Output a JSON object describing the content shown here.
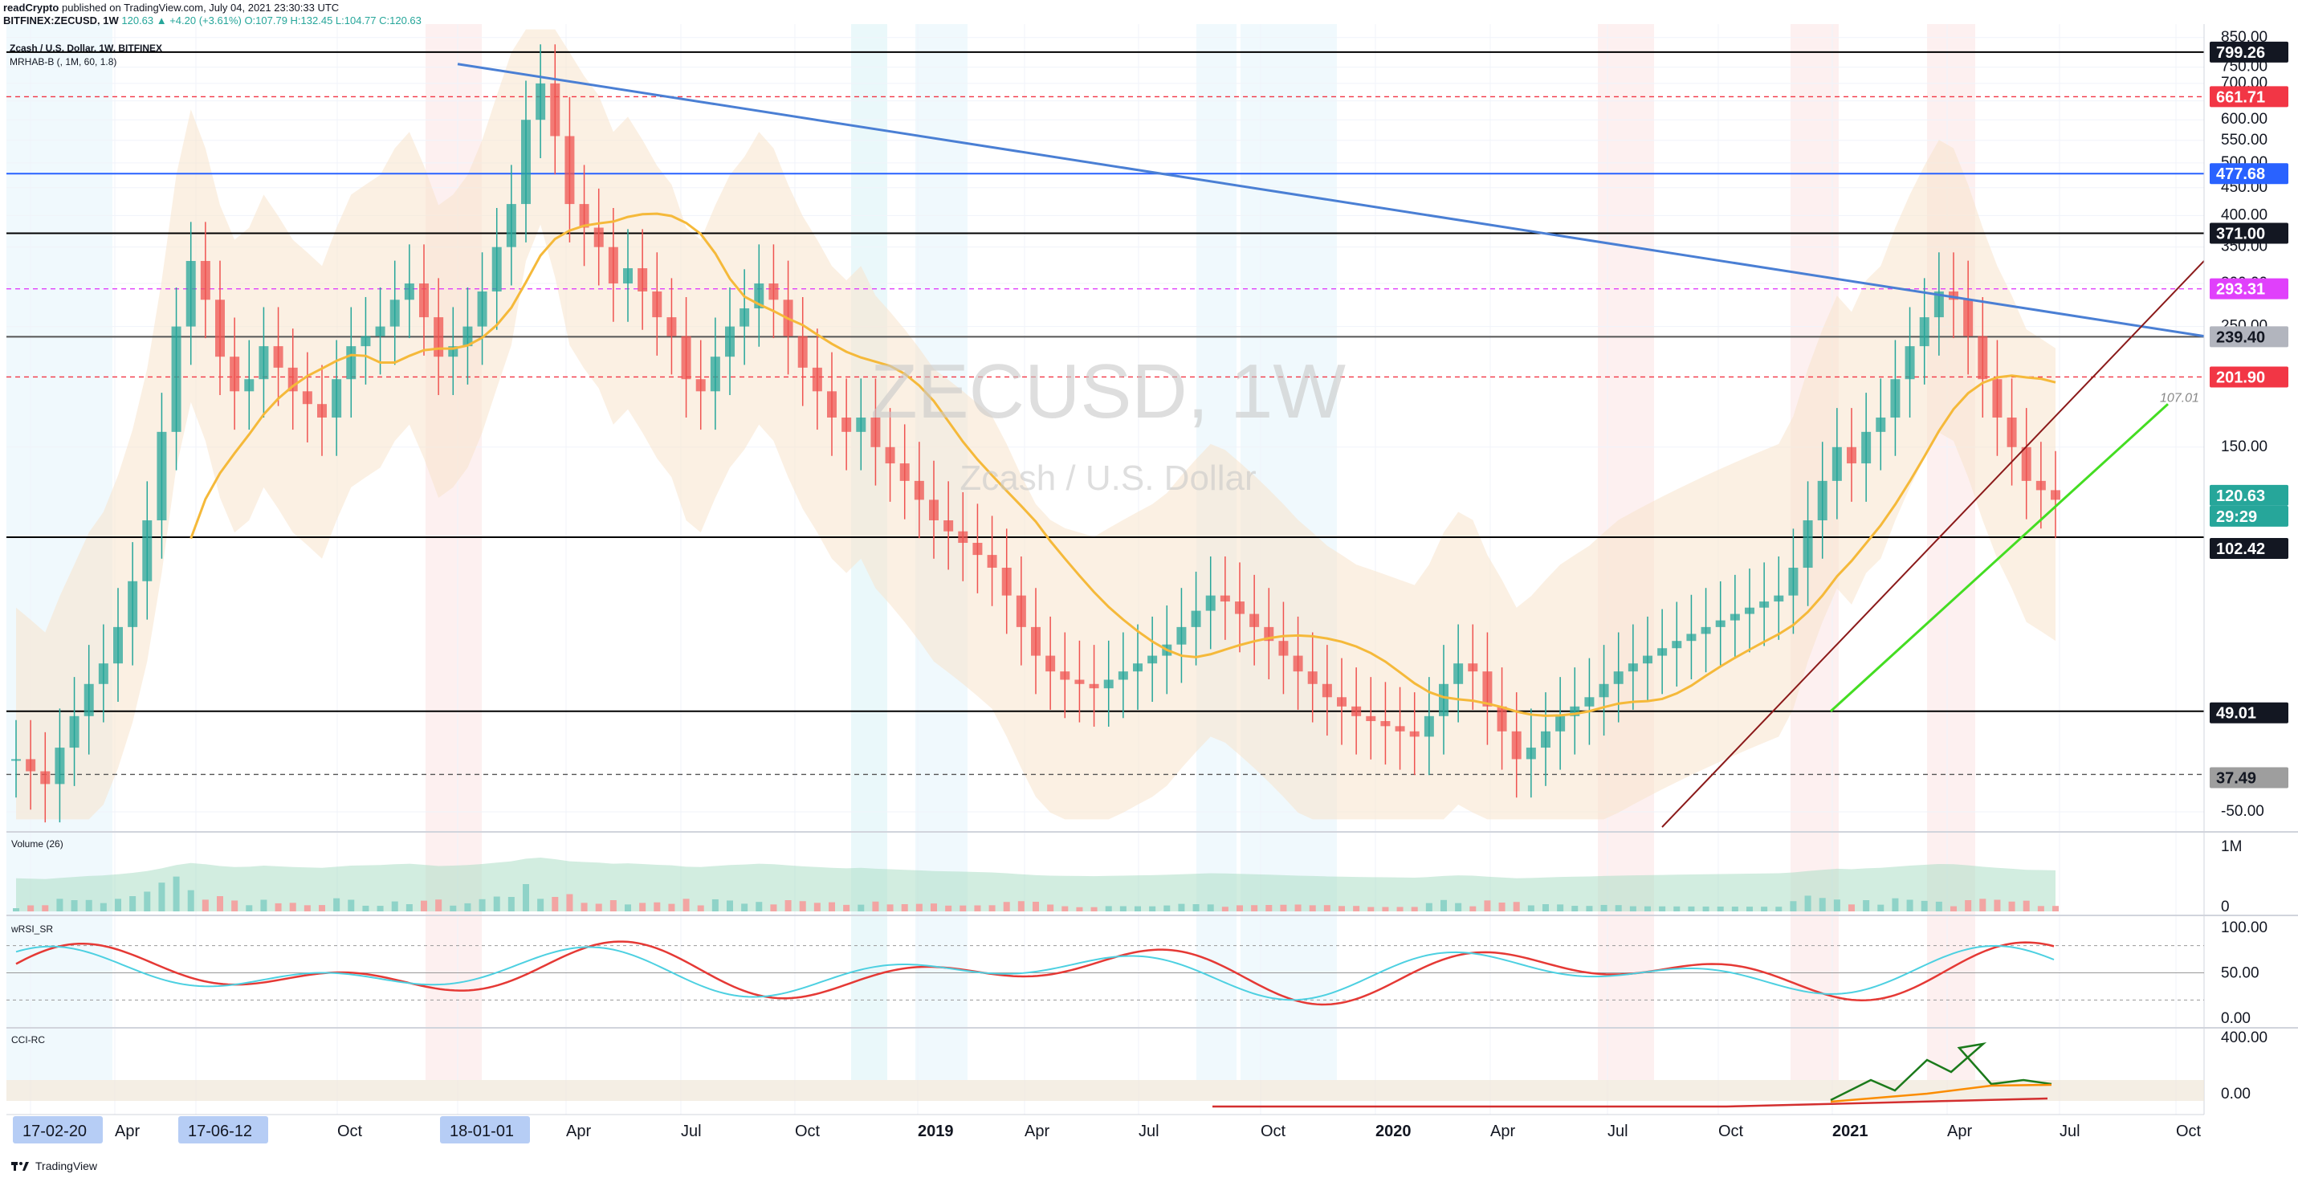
{
  "header": {
    "publisher": "readCrypto",
    "published_text": "published on TradingView.com, July 04, 2021 23:30:33 UTC",
    "symbol_line": "BITFINEX:ZECUSD, 1W",
    "ohlc": "120.63 ▲ +4.20 (+3.61%) O:107.79 H:132.45 L:104.77 C:120.63"
  },
  "legend": {
    "title": "Zcash / U.S. Dollar, 1W, BITFINEX",
    "indicator": "MRHAB-B (, 1M, 60, 1.8)"
  },
  "watermark": {
    "symbol": "ZECUSD, 1W",
    "name": "Zcash / U.S. Dollar"
  },
  "panes": {
    "volume_label": "Volume (26)",
    "rsi_label": "wRSI_SR",
    "cci_label": "CCI-RC"
  },
  "footer": {
    "brand": "TradingView"
  },
  "colors": {
    "up": "#26a69a",
    "down": "#ef5350",
    "trend_blue": "#4a7fd4",
    "support": "#8b1a1a",
    "green_line": "#44dd22",
    "ma_orange": "#f5b93a"
  },
  "chart_data": {
    "type": "candlestick",
    "title": "ZECUSD, 1W",
    "y_scale": "log",
    "ylim": [
      30,
      900
    ],
    "price_ticks": [
      "850.00",
      "750.00",
      "700.00",
      "650.00",
      "600.00",
      "550.00",
      "500.00",
      "450.00",
      "400.00",
      "350.00",
      "300.00",
      "250.00",
      "150.00",
      "-50.00"
    ],
    "time_ticks": [
      "17-02-20",
      "Apr",
      "17-06-12",
      "Oct",
      "18-01-01",
      "Apr",
      "Jul",
      "Oct",
      "2019",
      "Apr",
      "Jul",
      "Oct",
      "2020",
      "Apr",
      "Jul",
      "Oct",
      "2021",
      "Apr",
      "Jul",
      "Oct"
    ],
    "highlighted_dates": [
      "17-02-20",
      "17-06-12",
      "18-01-01"
    ],
    "horizontal_levels": [
      {
        "value": 799.26,
        "style": "solid",
        "color": "#000000"
      },
      {
        "value": 661.71,
        "style": "dashed",
        "color": "#f23645"
      },
      {
        "value": 477.68,
        "style": "solid",
        "color": "#2962ff"
      },
      {
        "value": 371.0,
        "style": "solid",
        "color": "#000000"
      },
      {
        "value": 293.31,
        "style": "dashed",
        "color": "#e040fb"
      },
      {
        "value": 239.4,
        "style": "solid",
        "color": "#555555"
      },
      {
        "value": 201.9,
        "style": "dashed",
        "color": "#f23645"
      },
      {
        "value": 102.42,
        "style": "solid",
        "color": "#000000"
      },
      {
        "value": 49.01,
        "style": "solid",
        "color": "#000000"
      },
      {
        "value": 37.49,
        "style": "dashed",
        "color": "#555555"
      }
    ],
    "price_labels": [
      {
        "text": "799.26",
        "bg": "#131722",
        "fg": "#ffffff"
      },
      {
        "text": "661.71",
        "bg": "#f23645",
        "fg": "#ffffff"
      },
      {
        "text": "477.68",
        "bg": "#2962ff",
        "fg": "#ffffff"
      },
      {
        "text": "371.00",
        "bg": "#131722",
        "fg": "#ffffff"
      },
      {
        "text": "293.31",
        "bg": "#e040fb",
        "fg": "#ffffff"
      },
      {
        "text": "239.40",
        "bg": "#b2b5be",
        "fg": "#131722"
      },
      {
        "text": "201.90",
        "bg": "#f23645",
        "fg": "#ffffff"
      },
      {
        "text": "120.63",
        "bg": "#26a69a",
        "fg": "#ffffff"
      },
      {
        "text": "29:29",
        "bg": "#26a69a",
        "fg": "#ffffff"
      },
      {
        "text": "102.42",
        "bg": "#131722",
        "fg": "#ffffff"
      },
      {
        "text": "49.01",
        "bg": "#131722",
        "fg": "#ffffff"
      },
      {
        "text": "37.49",
        "bg": "#9e9e9e",
        "fg": "#131722"
      }
    ],
    "annotation": "107.01",
    "volume_ticks": [
      "1M",
      "0"
    ],
    "rsi_ticks": [
      "100.00",
      "50.00",
      "0.00"
    ],
    "cci_ticks": [
      "400.00",
      "0.00"
    ],
    "closes": [
      40,
      38,
      36,
      42,
      48,
      55,
      60,
      70,
      85,
      110,
      160,
      250,
      330,
      280,
      220,
      190,
      200,
      230,
      210,
      190,
      180,
      170,
      200,
      230,
      240,
      250,
      280,
      300,
      260,
      220,
      230,
      250,
      290,
      350,
      420,
      600,
      700,
      560,
      420,
      380,
      350,
      300,
      320,
      290,
      260,
      240,
      200,
      190,
      220,
      250,
      270,
      300,
      280,
      240,
      210,
      190,
      170,
      160,
      170,
      150,
      140,
      130,
      120,
      110,
      105,
      100,
      95,
      90,
      80,
      70,
      62,
      58,
      56,
      55,
      54,
      56,
      58,
      60,
      62,
      65,
      70,
      75,
      80,
      78,
      74,
      70,
      66,
      62,
      58,
      55,
      52,
      50,
      48,
      47,
      46,
      45,
      44,
      48,
      55,
      60,
      58,
      50,
      45,
      40,
      42,
      45,
      48,
      50,
      52,
      55,
      58,
      60,
      62,
      64,
      66,
      68,
      70,
      72,
      74,
      76,
      78,
      80,
      90,
      110,
      130,
      150,
      140,
      160,
      170,
      200,
      230,
      260,
      290,
      280,
      240,
      200,
      170,
      150,
      130,
      125,
      120
    ]
  }
}
